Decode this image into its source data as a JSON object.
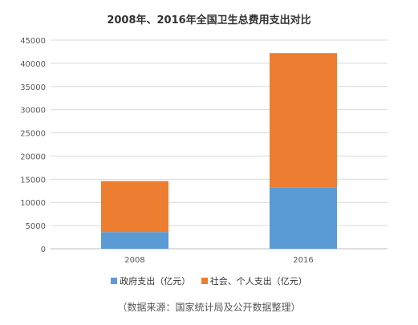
{
  "chart_data": {
    "type": "bar",
    "stacked": true,
    "title": "2008年、2016年全国卫生总费用支出对比",
    "categories": [
      "2008",
      "2016"
    ],
    "series": [
      {
        "name": "政府支出（亿元）",
        "values": [
          3600,
          13200
        ],
        "color": "#5b9bd5"
      },
      {
        "name": "社会、个人支出（亿元）",
        "values": [
          11000,
          29000
        ],
        "color": "#ed7d31"
      }
    ],
    "ylim": [
      0,
      45000
    ],
    "yticks": [
      "0",
      "5000",
      "10000",
      "15000",
      "20000",
      "25000",
      "30000",
      "35000",
      "40000",
      "45000"
    ],
    "grid": true,
    "legend_position": "bottom"
  },
  "source_note": "（数据来源：国家统计局及公开数据整理）"
}
